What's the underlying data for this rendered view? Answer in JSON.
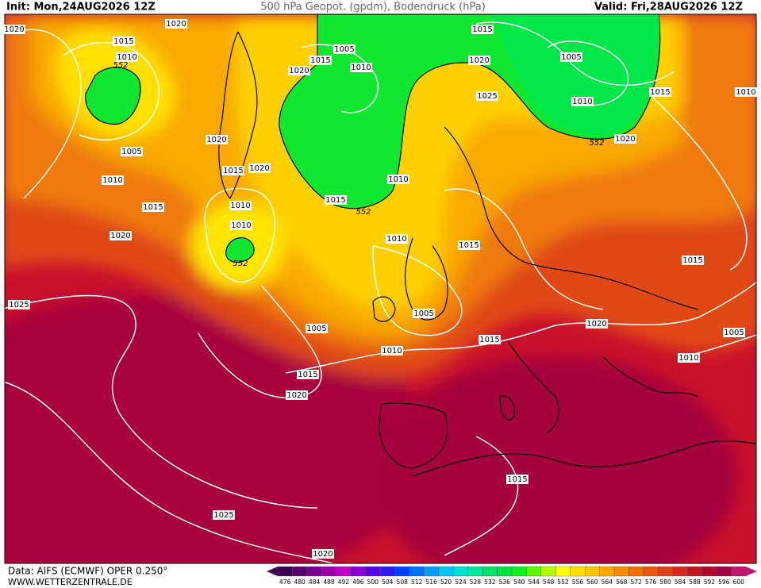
{
  "header": {
    "init": "Init: Mon,24AUG2026 12Z",
    "title": "500 hPa Geopot. (gpdm), Bodendruck (hPa)",
    "valid": "Valid: Fri,28AUG2026 12Z"
  },
  "footer": {
    "source": "Data: AIFS (ECMWF) OPER 0.250°",
    "website": "WWW.WETTERZENTRALE.DE"
  },
  "contour_labels": [
    "1020",
    "1020",
    "1015",
    "1010",
    "552",
    "1005",
    "1015",
    "1010",
    "1020",
    "1015",
    "1005",
    "1020",
    "1025",
    "1010",
    "1015",
    "1010",
    "552",
    "1020",
    "1005",
    "1020",
    "1015",
    "1020",
    "1010",
    "1010",
    "1015",
    "1015",
    "552",
    "1020",
    "1010",
    "1010",
    "1010",
    "552",
    "1015",
    "1015",
    "1025",
    "1005",
    "1005",
    "1020",
    "1005",
    "1015",
    "1010",
    "1010",
    "1015",
    "1020",
    "1015",
    "1025",
    "1020"
  ],
  "color_scale": {
    "values": [
      476,
      480,
      484,
      488,
      492,
      496,
      500,
      504,
      508,
      512,
      516,
      520,
      524,
      528,
      532,
      536,
      540,
      544,
      548,
      552,
      556,
      560,
      564,
      568,
      572,
      576,
      580,
      584,
      588,
      592,
      596,
      600
    ],
    "colors": [
      "#3c0050",
      "#58006e",
      "#78008c",
      "#9a00aa",
      "#c000c8",
      "#8a00d8",
      "#5a00e6",
      "#2a1cf0",
      "#0040ff",
      "#0070ff",
      "#00a0ff",
      "#00c8f0",
      "#00e0d0",
      "#00e8a0",
      "#00e070",
      "#00e640",
      "#10f020",
      "#60f800",
      "#b0ff00",
      "#ffff00",
      "#ffe000",
      "#ffc400",
      "#ffa800",
      "#f88c00",
      "#f07000",
      "#e85810",
      "#e04018",
      "#d42820",
      "#c41428",
      "#b00830",
      "#a00040",
      "#c0186a"
    ]
  }
}
